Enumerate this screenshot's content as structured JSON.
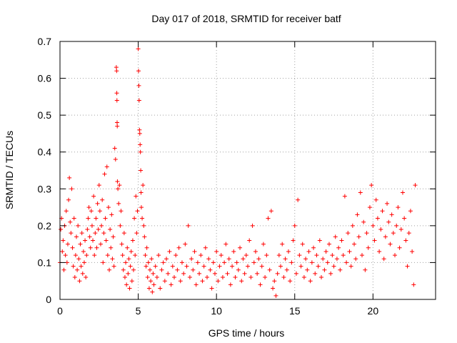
{
  "chart_data": {
    "type": "scatter",
    "title": "Day 017 of 2018, SRMTID for receiver batf",
    "xlabel": "GPS time / hours",
    "ylabel": "SRMTID / TECUs",
    "xlim": [
      0,
      24
    ],
    "ylim": [
      0,
      0.7
    ],
    "xticks": [
      0,
      5,
      10,
      15,
      20
    ],
    "yticks": [
      0,
      0.1,
      0.2,
      0.3,
      0.4,
      0.5,
      0.6,
      0.7
    ],
    "xtick_labels": [
      "0",
      "5",
      "10",
      "15",
      "20"
    ],
    "ytick_labels": [
      "0",
      "0.1",
      "0.2",
      "0.3",
      "0.4",
      "0.5",
      "0.6",
      "0.7"
    ],
    "grid": true,
    "marker": "+",
    "color": "#ff0000",
    "series": [
      {
        "name": "SRMTID",
        "points": [
          [
            0.0,
            0.1
          ],
          [
            0.05,
            0.19
          ],
          [
            0.1,
            0.22
          ],
          [
            0.15,
            0.13
          ],
          [
            0.2,
            0.16
          ],
          [
            0.25,
            0.08
          ],
          [
            0.3,
            0.2
          ],
          [
            0.35,
            0.12
          ],
          [
            0.4,
            0.24
          ],
          [
            0.45,
            0.1
          ],
          [
            0.5,
            0.15
          ],
          [
            0.55,
            0.27
          ],
          [
            0.6,
            0.33
          ],
          [
            0.65,
            0.21
          ],
          [
            0.7,
            0.18
          ],
          [
            0.75,
            0.3
          ],
          [
            0.8,
            0.14
          ],
          [
            0.85,
            0.09
          ],
          [
            0.9,
            0.22
          ],
          [
            0.95,
            0.06
          ],
          [
            1.0,
            0.12
          ],
          [
            1.05,
            0.17
          ],
          [
            1.1,
            0.08
          ],
          [
            1.15,
            0.2
          ],
          [
            1.2,
            0.11
          ],
          [
            1.25,
            0.05
          ],
          [
            1.3,
            0.15
          ],
          [
            1.35,
            0.09
          ],
          [
            1.4,
            0.18
          ],
          [
            1.45,
            0.07
          ],
          [
            1.5,
            0.13
          ],
          [
            1.55,
            0.1
          ],
          [
            1.6,
            0.16
          ],
          [
            1.65,
            0.06
          ],
          [
            1.7,
            0.12
          ],
          [
            1.75,
            0.19
          ],
          [
            1.8,
            0.22
          ],
          [
            1.85,
            0.25
          ],
          [
            1.9,
            0.17
          ],
          [
            1.95,
            0.14
          ],
          [
            2.0,
            0.24
          ],
          [
            2.05,
            0.2
          ],
          [
            2.1,
            0.16
          ],
          [
            2.15,
            0.28
          ],
          [
            2.2,
            0.12
          ],
          [
            2.25,
            0.18
          ],
          [
            2.3,
            0.22
          ],
          [
            2.35,
            0.14
          ],
          [
            2.4,
            0.26
          ],
          [
            2.45,
            0.19
          ],
          [
            2.5,
            0.31
          ],
          [
            2.55,
            0.24
          ],
          [
            2.6,
            0.15
          ],
          [
            2.65,
            0.2
          ],
          [
            2.7,
            0.27
          ],
          [
            2.75,
            0.1
          ],
          [
            2.8,
            0.18
          ],
          [
            2.85,
            0.34
          ],
          [
            2.9,
            0.22
          ],
          [
            2.95,
            0.16
          ],
          [
            3.0,
            0.36
          ],
          [
            3.05,
            0.12
          ],
          [
            3.1,
            0.25
          ],
          [
            3.15,
            0.08
          ],
          [
            3.2,
            0.19
          ],
          [
            3.25,
            0.14
          ],
          [
            3.3,
            0.23
          ],
          [
            3.35,
            0.11
          ],
          [
            3.4,
            0.17
          ],
          [
            3.45,
            0.09
          ],
          [
            3.5,
            0.41
          ],
          [
            3.55,
            0.38
          ],
          [
            3.6,
            0.63
          ],
          [
            3.62,
            0.62
          ],
          [
            3.63,
            0.56
          ],
          [
            3.64,
            0.54
          ],
          [
            3.65,
            0.48
          ],
          [
            3.66,
            0.47
          ],
          [
            3.67,
            0.32
          ],
          [
            3.7,
            0.3
          ],
          [
            3.75,
            0.26
          ],
          [
            3.8,
            0.31
          ],
          [
            3.85,
            0.2
          ],
          [
            3.9,
            0.24
          ],
          [
            3.95,
            0.15
          ],
          [
            4.0,
            0.12
          ],
          [
            4.05,
            0.08
          ],
          [
            4.1,
            0.18
          ],
          [
            4.15,
            0.06
          ],
          [
            4.2,
            0.1
          ],
          [
            4.25,
            0.04
          ],
          [
            4.3,
            0.14
          ],
          [
            4.35,
            0.07
          ],
          [
            4.4,
            0.11
          ],
          [
            4.45,
            0.03
          ],
          [
            4.5,
            0.09
          ],
          [
            4.55,
            0.13
          ],
          [
            4.6,
            0.05
          ],
          [
            4.65,
            0.16
          ],
          [
            4.7,
            0.08
          ],
          [
            4.75,
            0.22
          ],
          [
            4.8,
            0.12
          ],
          [
            4.85,
            0.28
          ],
          [
            4.9,
            0.18
          ],
          [
            4.95,
            0.24
          ],
          [
            5.0,
            0.68
          ],
          [
            5.02,
            0.62
          ],
          [
            5.04,
            0.58
          ],
          [
            5.06,
            0.54
          ],
          [
            5.08,
            0.46
          ],
          [
            5.1,
            0.45
          ],
          [
            5.12,
            0.42
          ],
          [
            5.14,
            0.4
          ],
          [
            5.16,
            0.35
          ],
          [
            5.18,
            0.29
          ],
          [
            5.2,
            0.25
          ],
          [
            5.25,
            0.22
          ],
          [
            5.3,
            0.31
          ],
          [
            5.35,
            0.2
          ],
          [
            5.4,
            0.17
          ],
          [
            5.45,
            0.12
          ],
          [
            5.5,
            0.09
          ],
          [
            5.55,
            0.14
          ],
          [
            5.6,
            0.06
          ],
          [
            5.65,
            0.1
          ],
          [
            5.7,
            0.03
          ],
          [
            5.75,
            0.08
          ],
          [
            5.8,
            0.05
          ],
          [
            5.85,
            0.11
          ],
          [
            5.9,
            0.02
          ],
          [
            5.95,
            0.07
          ],
          [
            6.0,
            0.04
          ],
          [
            6.1,
            0.09
          ],
          [
            6.2,
            0.06
          ],
          [
            6.3,
            0.12
          ],
          [
            6.4,
            0.03
          ],
          [
            6.5,
            0.08
          ],
          [
            6.6,
            0.1
          ],
          [
            6.7,
            0.05
          ],
          [
            6.8,
            0.11
          ],
          [
            6.9,
            0.07
          ],
          [
            7.0,
            0.13
          ],
          [
            7.1,
            0.04
          ],
          [
            7.2,
            0.09
          ],
          [
            7.3,
            0.06
          ],
          [
            7.4,
            0.12
          ],
          [
            7.5,
            0.08
          ],
          [
            7.6,
            0.14
          ],
          [
            7.7,
            0.05
          ],
          [
            7.8,
            0.1
          ],
          [
            7.9,
            0.07
          ],
          [
            8.0,
            0.15
          ],
          [
            8.1,
            0.09
          ],
          [
            8.2,
            0.2
          ],
          [
            8.3,
            0.06
          ],
          [
            8.4,
            0.11
          ],
          [
            8.5,
            0.08
          ],
          [
            8.6,
            0.13
          ],
          [
            8.7,
            0.04
          ],
          [
            8.8,
            0.1
          ],
          [
            8.9,
            0.07
          ],
          [
            9.0,
            0.12
          ],
          [
            9.1,
            0.05
          ],
          [
            9.2,
            0.09
          ],
          [
            9.3,
            0.14
          ],
          [
            9.4,
            0.06
          ],
          [
            9.5,
            0.11
          ],
          [
            9.6,
            0.08
          ],
          [
            9.7,
            0.03
          ],
          [
            9.8,
            0.1
          ],
          [
            9.9,
            0.07
          ],
          [
            10.0,
            0.13
          ],
          [
            10.1,
            0.05
          ],
          [
            10.2,
            0.09
          ],
          [
            10.3,
            0.12
          ],
          [
            10.4,
            0.06
          ],
          [
            10.5,
            0.1
          ],
          [
            10.6,
            0.15
          ],
          [
            10.7,
            0.07
          ],
          [
            10.8,
            0.11
          ],
          [
            10.9,
            0.04
          ],
          [
            11.0,
            0.09
          ],
          [
            11.1,
            0.13
          ],
          [
            11.2,
            0.06
          ],
          [
            11.3,
            0.1
          ],
          [
            11.4,
            0.08
          ],
          [
            11.5,
            0.14
          ],
          [
            11.6,
            0.05
          ],
          [
            11.7,
            0.11
          ],
          [
            11.8,
            0.07
          ],
          [
            11.9,
            0.12
          ],
          [
            12.0,
            0.09
          ],
          [
            12.1,
            0.16
          ],
          [
            12.2,
            0.06
          ],
          [
            12.3,
            0.2
          ],
          [
            12.4,
            0.1
          ],
          [
            12.5,
            0.13
          ],
          [
            12.6,
            0.07
          ],
          [
            12.7,
            0.11
          ],
          [
            12.8,
            0.04
          ],
          [
            12.9,
            0.09
          ],
          [
            13.0,
            0.15
          ],
          [
            13.1,
            0.06
          ],
          [
            13.2,
            0.12
          ],
          [
            13.3,
            0.22
          ],
          [
            13.4,
            0.08
          ],
          [
            13.5,
            0.24
          ],
          [
            13.6,
            0.03
          ],
          [
            13.7,
            0.05
          ],
          [
            13.8,
            0.01
          ],
          [
            13.9,
            0.07
          ],
          [
            14.0,
            0.12
          ],
          [
            14.1,
            0.09
          ],
          [
            14.2,
            0.15
          ],
          [
            14.3,
            0.06
          ],
          [
            14.4,
            0.11
          ],
          [
            14.5,
            0.08
          ],
          [
            14.6,
            0.13
          ],
          [
            14.7,
            0.05
          ],
          [
            14.8,
            0.1
          ],
          [
            14.9,
            0.16
          ],
          [
            15.0,
            0.2
          ],
          [
            15.1,
            0.07
          ],
          [
            15.2,
            0.27
          ],
          [
            15.3,
            0.12
          ],
          [
            15.4,
            0.09
          ],
          [
            15.5,
            0.15
          ],
          [
            15.6,
            0.06
          ],
          [
            15.7,
            0.11
          ],
          [
            15.8,
            0.08
          ],
          [
            15.9,
            0.13
          ],
          [
            16.0,
            0.05
          ],
          [
            16.1,
            0.1
          ],
          [
            16.2,
            0.14
          ],
          [
            16.3,
            0.07
          ],
          [
            16.4,
            0.12
          ],
          [
            16.5,
            0.09
          ],
          [
            16.6,
            0.16
          ],
          [
            16.7,
            0.06
          ],
          [
            16.8,
            0.11
          ],
          [
            16.9,
            0.08
          ],
          [
            17.0,
            0.13
          ],
          [
            17.1,
            0.1
          ],
          [
            17.2,
            0.15
          ],
          [
            17.3,
            0.07
          ],
          [
            17.4,
            0.12
          ],
          [
            17.5,
            0.09
          ],
          [
            17.6,
            0.17
          ],
          [
            17.7,
            0.11
          ],
          [
            17.8,
            0.14
          ],
          [
            17.9,
            0.08
          ],
          [
            18.0,
            0.16
          ],
          [
            18.1,
            0.12
          ],
          [
            18.2,
            0.28
          ],
          [
            18.3,
            0.1
          ],
          [
            18.4,
            0.18
          ],
          [
            18.5,
            0.13
          ],
          [
            18.6,
            0.09
          ],
          [
            18.7,
            0.2
          ],
          [
            18.8,
            0.15
          ],
          [
            18.9,
            0.11
          ],
          [
            19.0,
            0.23
          ],
          [
            19.1,
            0.17
          ],
          [
            19.2,
            0.29
          ],
          [
            19.3,
            0.12
          ],
          [
            19.4,
            0.21
          ],
          [
            19.5,
            0.08
          ],
          [
            19.6,
            0.18
          ],
          [
            19.7,
            0.14
          ],
          [
            19.8,
            0.25
          ],
          [
            19.9,
            0.31
          ],
          [
            20.0,
            0.2
          ],
          [
            20.1,
            0.16
          ],
          [
            20.2,
            0.27
          ],
          [
            20.3,
            0.22
          ],
          [
            20.4,
            0.13
          ],
          [
            20.5,
            0.19
          ],
          [
            20.6,
            0.24
          ],
          [
            20.7,
            0.11
          ],
          [
            20.8,
            0.17
          ],
          [
            20.9,
            0.26
          ],
          [
            21.0,
            0.21
          ],
          [
            21.1,
            0.15
          ],
          [
            21.2,
            0.23
          ],
          [
            21.3,
            0.18
          ],
          [
            21.4,
            0.12
          ],
          [
            21.5,
            0.2
          ],
          [
            21.6,
            0.25
          ],
          [
            21.7,
            0.14
          ],
          [
            21.8,
            0.19
          ],
          [
            21.9,
            0.29
          ],
          [
            22.0,
            0.22
          ],
          [
            22.1,
            0.16
          ],
          [
            22.2,
            0.09
          ],
          [
            22.3,
            0.18
          ],
          [
            22.4,
            0.24
          ],
          [
            22.5,
            0.13
          ],
          [
            22.6,
            0.04
          ],
          [
            22.7,
            0.31
          ]
        ]
      }
    ]
  }
}
